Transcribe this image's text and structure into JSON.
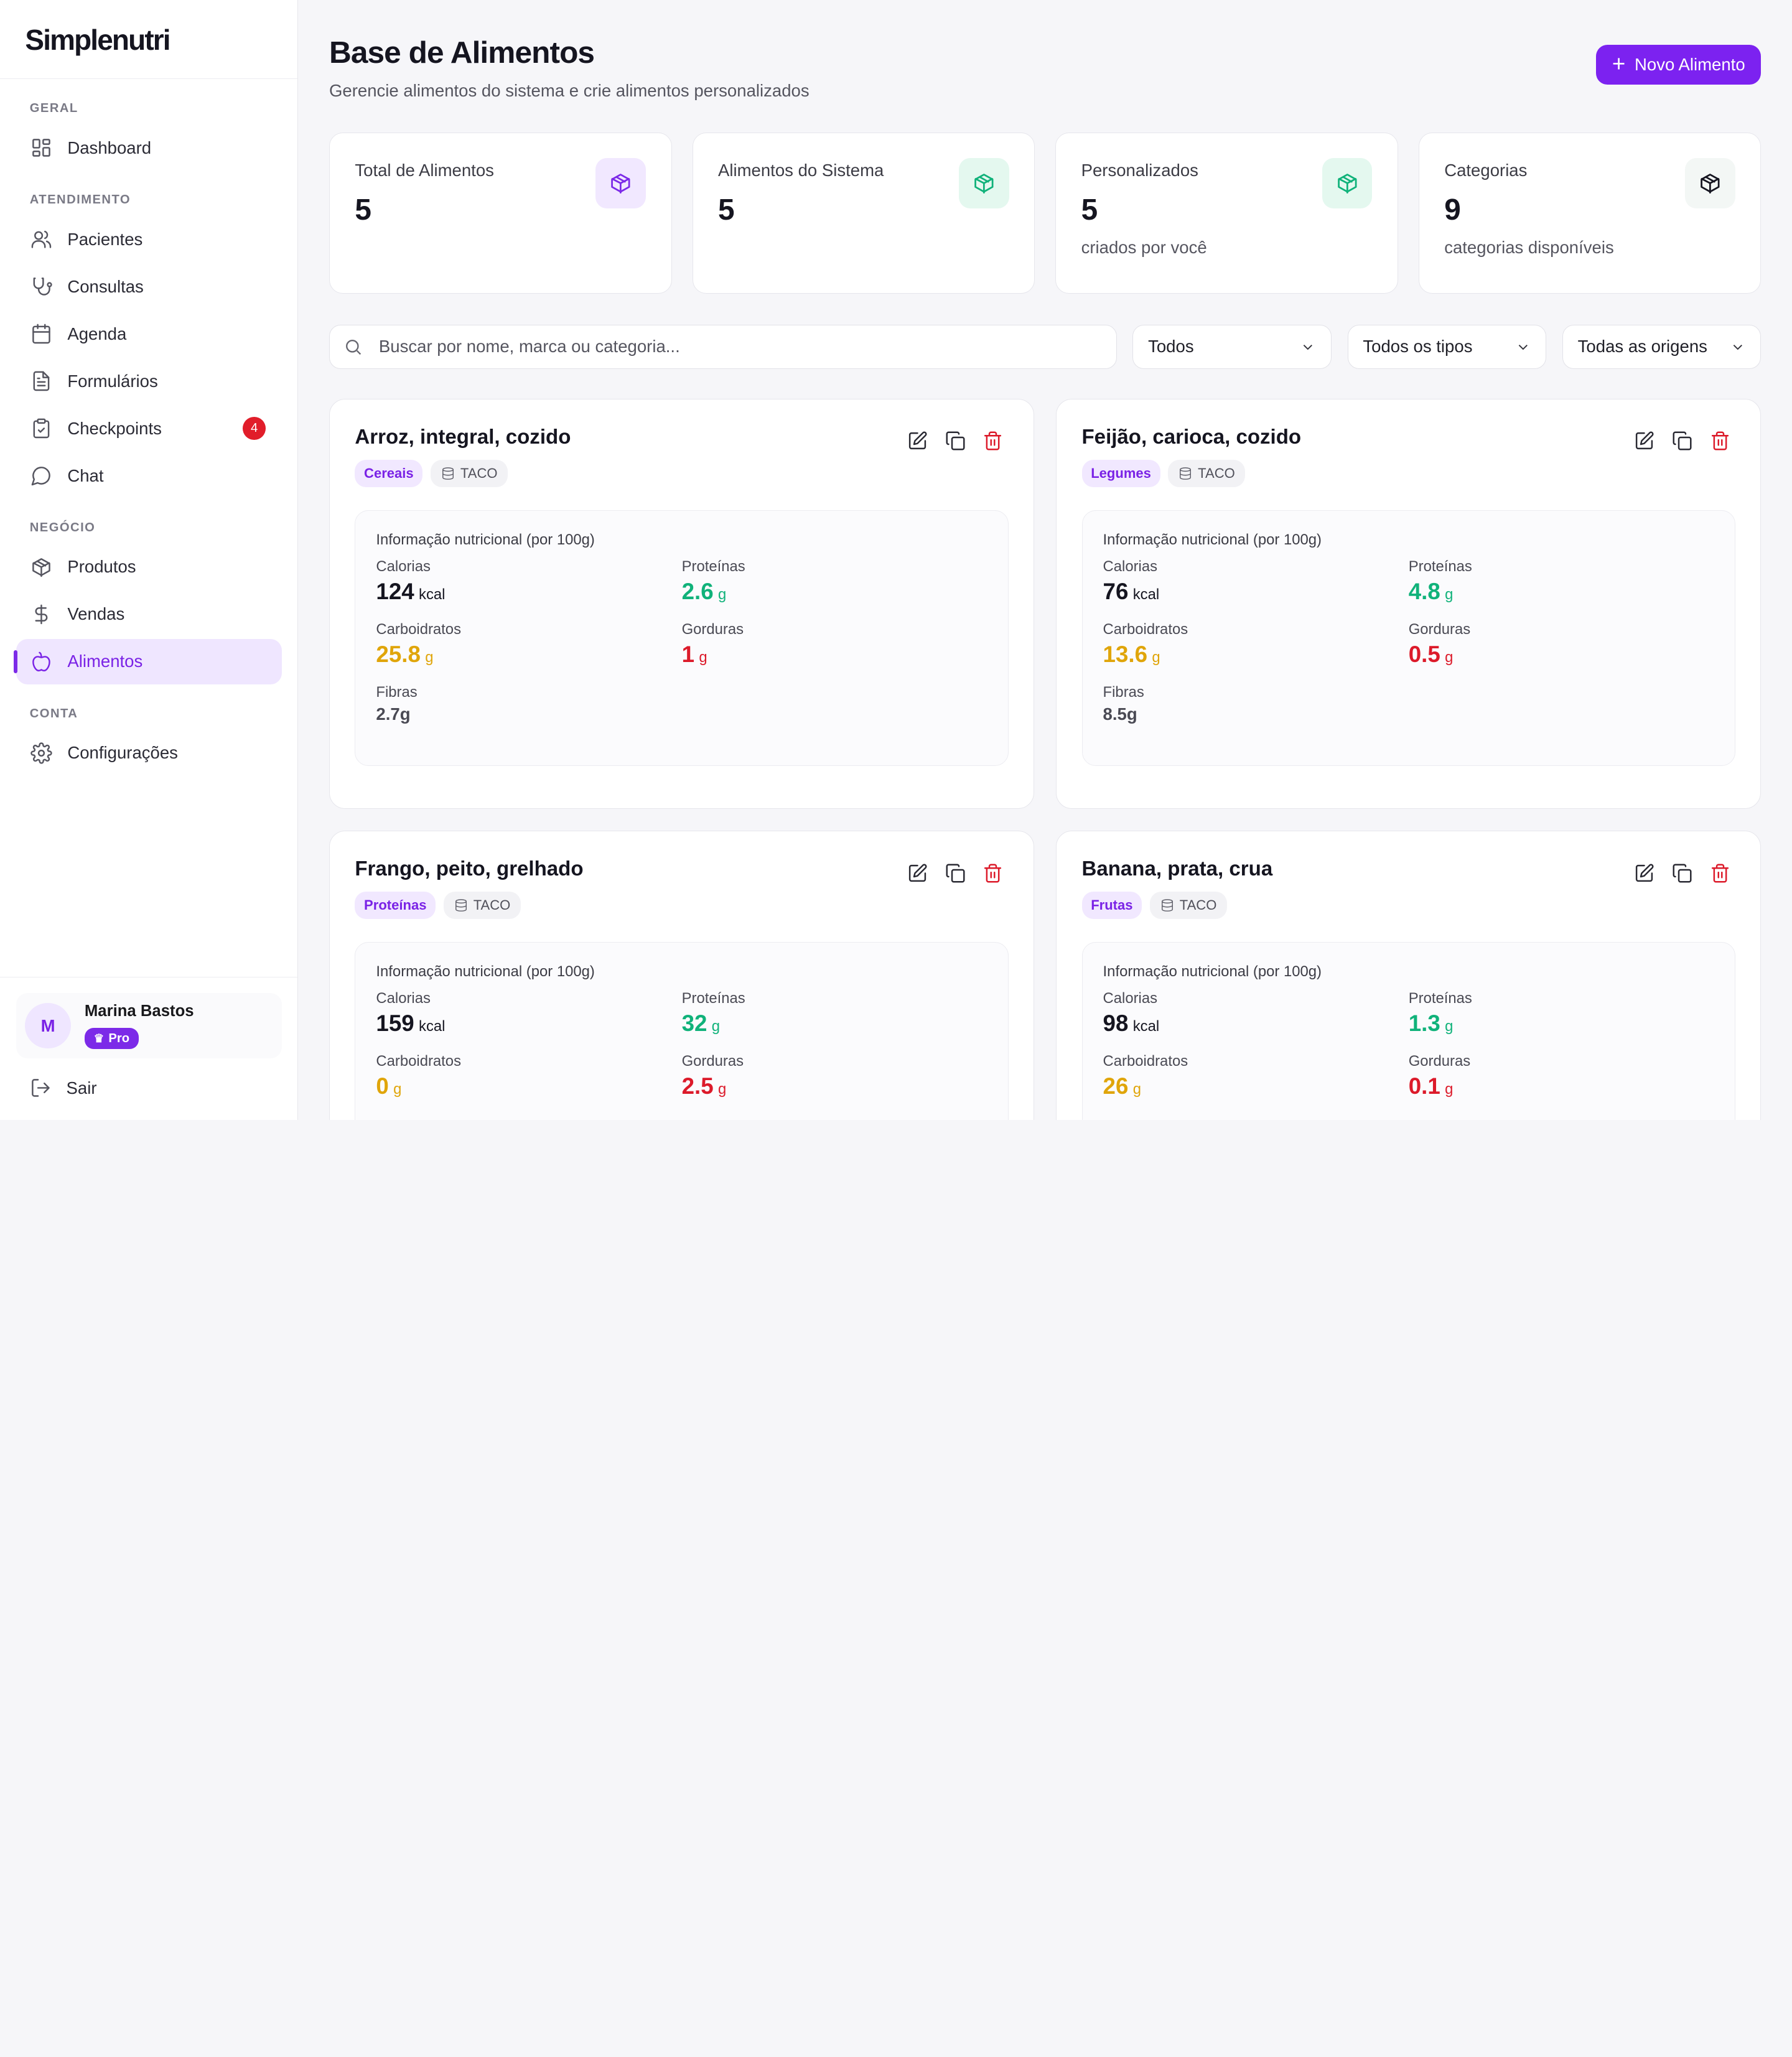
{
  "app": {
    "logo": "Simplenutri"
  },
  "sidebar": {
    "sections": [
      {
        "title": "GERAL"
      },
      {
        "title": "ATENDIMENTO"
      },
      {
        "title": "NEGÓCIO"
      },
      {
        "title": "CONTA"
      }
    ],
    "items": [
      {
        "label": "Dashboard",
        "icon": "dashboard-icon"
      },
      {
        "label": "Pacientes",
        "icon": "users-icon"
      },
      {
        "label": "Consultas",
        "icon": "stethoscope-icon"
      },
      {
        "label": "Agenda",
        "icon": "calendar-icon"
      },
      {
        "label": "Formulários",
        "icon": "file-text-icon"
      },
      {
        "label": "Checkpoints",
        "icon": "clipboard-check-icon",
        "badge": "4"
      },
      {
        "label": "Chat",
        "icon": "chat-icon"
      },
      {
        "label": "Produtos",
        "icon": "package-icon"
      },
      {
        "label": "Vendas",
        "icon": "dollar-icon"
      },
      {
        "label": "Alimentos",
        "icon": "apple-icon",
        "active": true
      },
      {
        "label": "Configurações",
        "icon": "gear-icon"
      }
    ],
    "user": {
      "initial": "M",
      "name": "Marina Bastos",
      "plan": "Pro"
    },
    "logout_label": "Sair"
  },
  "header": {
    "title": "Base de Alimentos",
    "subtitle": "Gerencie alimentos do sistema e crie alimentos personalizados",
    "new_button": "Novo Alimento"
  },
  "stats": [
    {
      "label": "Total de Alimentos",
      "value": "5",
      "sub": "",
      "icon_color": "#7c2ae8",
      "icon_bg": "#f1e8ff"
    },
    {
      "label": "Alimentos do Sistema",
      "value": "5",
      "sub": "",
      "icon_color": "#10b27a",
      "icon_bg": "#e4f8ef"
    },
    {
      "label": "Personalizados",
      "value": "5",
      "sub": "criados por você",
      "icon_color": "#10b27a",
      "icon_bg": "#e4f8ef"
    },
    {
      "label": "Categorias",
      "value": "9",
      "sub": "categorias disponíveis",
      "icon_color": "#151520",
      "icon_bg": "#f3f7f5"
    }
  ],
  "filters": {
    "search_placeholder": "Buscar por nome, marca ou categoria...",
    "category": "Todos",
    "type": "Todos os tipos",
    "origin": "Todas as origens"
  },
  "labels": {
    "nutri_head": "Informação nutricional (por 100g)",
    "calories": "Calorias",
    "proteins": "Proteínas",
    "carbs": "Carboidratos",
    "fats": "Gorduras",
    "fiber": "Fibras",
    "kcal": "kcal",
    "g": "g"
  },
  "foods": [
    {
      "name": "Arroz, integral, cozido",
      "category": "Cereais",
      "source": "TACO",
      "calories": "124",
      "protein": "2.6",
      "carbs": "25.8",
      "fat": "1",
      "fiber": "2.7g"
    },
    {
      "name": "Feijão, carioca, cozido",
      "category": "Legumes",
      "source": "TACO",
      "calories": "76",
      "protein": "4.8",
      "carbs": "13.6",
      "fat": "0.5",
      "fiber": "8.5g"
    },
    {
      "name": "Frango, peito, grelhado",
      "category": "Proteínas",
      "source": "TACO",
      "calories": "159",
      "protein": "32",
      "carbs": "0",
      "fat": "2.5",
      "fiber": ""
    },
    {
      "name": "Banana, prata, crua",
      "category": "Frutas",
      "source": "TACO",
      "calories": "98",
      "protein": "1.3",
      "carbs": "26",
      "fat": "0.1",
      "fiber": ""
    }
  ]
}
